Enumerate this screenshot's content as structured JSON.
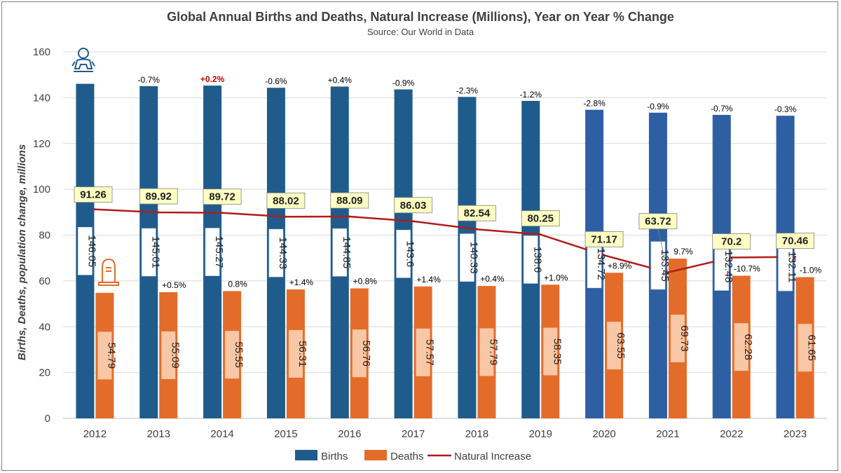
{
  "chart_data": {
    "type": "bar",
    "title": "Global Annual Births and Deaths, Natural Increase (Millions), Year on Year % Change",
    "subtitle": "Source: Our World in Data",
    "ylabel": "Births, Deaths, population change,  millions",
    "xlabel": "",
    "ylim": [
      0,
      160
    ],
    "yticks": [
      0,
      20,
      40,
      60,
      80,
      100,
      120,
      140,
      160
    ],
    "grid": true,
    "legend_position": "bottom",
    "categories": [
      "2012",
      "2013",
      "2014",
      "2015",
      "2016",
      "2017",
      "2018",
      "2019",
      "2020",
      "2021",
      "2022",
      "2023"
    ],
    "series": [
      {
        "name": "Births",
        "kind": "bar",
        "color": "#1f5c8b",
        "color_highlight": "#2e5fa3",
        "values": [
          146.05,
          145.01,
          145.27,
          144.33,
          144.85,
          143.6,
          140.33,
          138.6,
          134.72,
          133.45,
          132.48,
          132.11
        ],
        "labels": [
          "146.05",
          "145.01",
          "145.27",
          "144.33",
          "144.85",
          "143.6",
          "140.33",
          "138.6",
          "134.72",
          "133.45",
          "132.48",
          "132.11"
        ],
        "pct_change": [
          "",
          "-0.7%",
          "+0.2%",
          "-0.6%",
          "+0.4%",
          "-0.9%",
          "-2.3%",
          "-1.2%",
          "-2.8%",
          "-0.9%",
          "-0.7%",
          "-0.3%"
        ]
      },
      {
        "name": "Deaths",
        "kind": "bar",
        "color": "#e46c2a",
        "values": [
          54.79,
          55.09,
          55.55,
          56.31,
          56.76,
          57.57,
          57.79,
          58.35,
          63.55,
          69.73,
          62.28,
          61.65
        ],
        "labels": [
          "54.79",
          "55.09",
          "55.55",
          "56.31",
          "56.76",
          "57.57",
          "57.79",
          "58.35",
          "63.55",
          "69.73",
          "62.28",
          "61.65"
        ],
        "pct_change": [
          "",
          "+0.5%",
          "0.8%",
          "+1.4%",
          "+0.8%",
          "+1.4%",
          "+0.4%",
          "+1.0%",
          "+8.9%",
          "9.7%",
          "-10.7%",
          "-1.0%"
        ]
      },
      {
        "name": "Natural Increase",
        "kind": "line",
        "color": "#b01c1c",
        "values": [
          91.26,
          89.92,
          89.72,
          88.02,
          88.09,
          86.03,
          82.54,
          80.25,
          71.17,
          63.72,
          70.2,
          70.46
        ],
        "labels": [
          "91.26",
          "89.92",
          "89.72",
          "88.02",
          "88.09",
          "86.03",
          "82.54",
          "80.25",
          "71.17",
          "63.72",
          "70.2",
          "70.46"
        ]
      }
    ],
    "highlight_pct_red": [
      "+0.2%"
    ],
    "icons": [
      "baby-icon",
      "tombstone-icon"
    ]
  },
  "colors": {
    "births_dark": "#1f5c8b",
    "births_light": "#2e5fa3",
    "deaths": "#e46c2a",
    "natural_increase": "#b01c1c",
    "ni_label_bg": "#ffffc4",
    "grid": "#d9d9d9",
    "text": "#404040"
  }
}
